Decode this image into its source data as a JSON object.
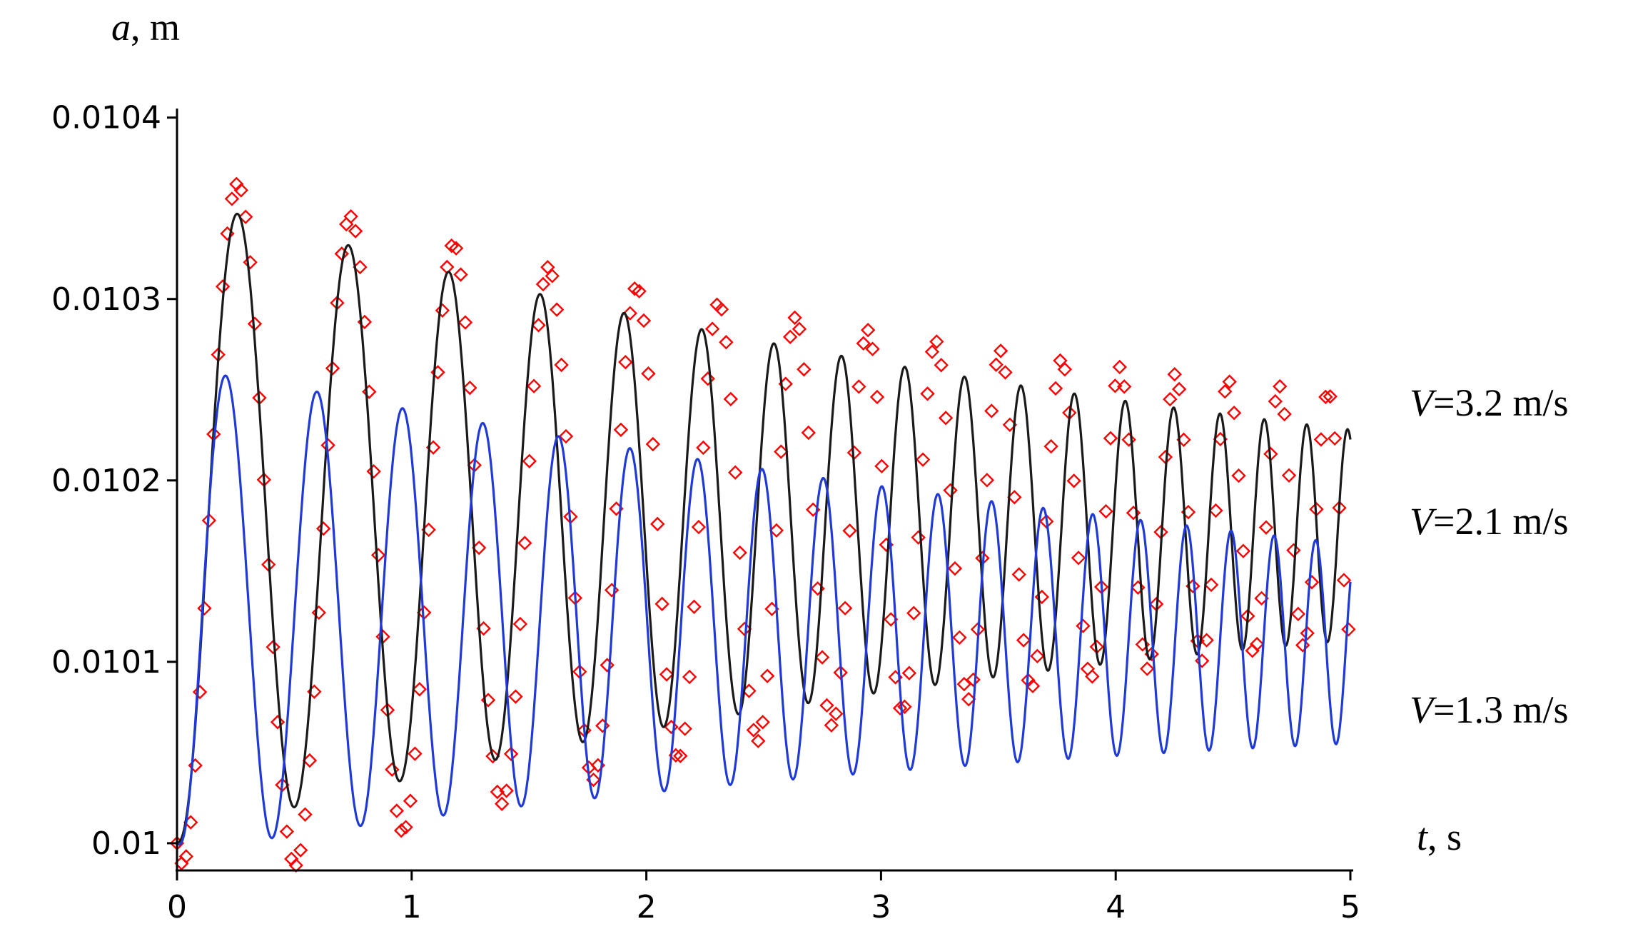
{
  "chart_data": {
    "type": "line",
    "title": "",
    "xlabel": {
      "symbol": "t",
      "unit": ", s"
    },
    "ylabel": {
      "symbol": "a",
      "unit": ", m"
    },
    "xlim": [
      0,
      5
    ],
    "ylim": [
      0.009985,
      0.010405
    ],
    "x_ticks": [
      {
        "value": 0,
        "label": "0"
      },
      {
        "value": 1,
        "label": "1"
      },
      {
        "value": 2,
        "label": "2"
      },
      {
        "value": 3,
        "label": "3"
      },
      {
        "value": 4,
        "label": "4"
      },
      {
        "value": 5,
        "label": "5"
      }
    ],
    "y_ticks": [
      {
        "value": 0.01,
        "label": "0.01"
      },
      {
        "value": 0.0101,
        "label": "0.0101"
      },
      {
        "value": 0.0102,
        "label": "0.0102"
      },
      {
        "value": 0.0103,
        "label": "0.0103"
      },
      {
        "value": 0.0104,
        "label": "0.0104"
      }
    ],
    "grid": false,
    "series": [
      {
        "label": {
          "symbol": "V",
          "text": "=3.2 m/s"
        },
        "style": "markers",
        "marker": "diamond",
        "color": "#ff0000",
        "start": 0.01,
        "mean_early": 0.01017,
        "mean_late": 0.01018,
        "amp0": 0.000205,
        "amp_end": 6.8e-05,
        "period0": 0.53,
        "period_end": 0.2,
        "x": [
          0.22,
          0.8,
          1.23,
          1.62,
          1.95,
          2.27,
          2.58,
          2.85,
          3.12,
          3.37,
          3.62,
          3.85,
          4.07,
          4.27,
          4.46,
          4.66,
          4.85
        ],
        "y": [
          0.010393,
          0.010348,
          0.010327,
          0.010308,
          0.010298,
          0.010289,
          0.010282,
          0.010276,
          0.010272,
          0.010268,
          0.010265,
          0.010262,
          0.010259,
          0.010256,
          0.010253,
          0.01025,
          0.010248
        ]
      },
      {
        "label": {
          "symbol": "V",
          "text": "=2.1 m/s"
        },
        "style": "line",
        "color": "#1a1a1a",
        "start": 0.01,
        "mean_early": 0.01018,
        "mean_late": 0.01017,
        "amp0": 0.000178,
        "amp_end": 5.8e-05,
        "period0": 0.53,
        "period_end": 0.17,
        "x": [
          0.21,
          0.72,
          1.15,
          1.5,
          1.82,
          2.12,
          2.4,
          2.67,
          2.92,
          3.16,
          3.38,
          3.6,
          3.8,
          4.0,
          4.2,
          4.39,
          4.58,
          4.76,
          4.94
        ],
        "y": [
          0.010356,
          0.010322,
          0.0103,
          0.010285,
          0.010274,
          0.010266,
          0.01026,
          0.010255,
          0.01025,
          0.010246,
          0.010243,
          0.01024,
          0.010237,
          0.010235,
          0.010233,
          0.010231,
          0.010229,
          0.010227,
          0.010226
        ]
      },
      {
        "label": {
          "symbol": "V",
          "text": "=1.3 m/s"
        },
        "style": "line",
        "color": "#1f3ad6",
        "start": 0.01,
        "mean_early": 0.01013,
        "mean_late": 0.01011,
        "amp0": 0.000135,
        "amp_end": 5.5e-05,
        "period0": 0.42,
        "period_end": 0.17,
        "x": [
          0.16,
          0.56,
          0.91,
          1.23,
          1.53,
          1.82,
          2.09,
          2.35,
          2.6,
          2.84,
          3.07,
          3.3,
          3.52,
          3.73,
          3.94,
          4.14,
          4.34,
          4.54,
          4.73,
          4.92
        ],
        "y": [
          0.01026,
          0.01024,
          0.010225,
          0.010214,
          0.010206,
          0.0102,
          0.010195,
          0.010191,
          0.010187,
          0.010184,
          0.010181,
          0.010178,
          0.010176,
          0.010174,
          0.010172,
          0.01017,
          0.010168,
          0.010166,
          0.010165,
          0.010163
        ]
      }
    ]
  }
}
